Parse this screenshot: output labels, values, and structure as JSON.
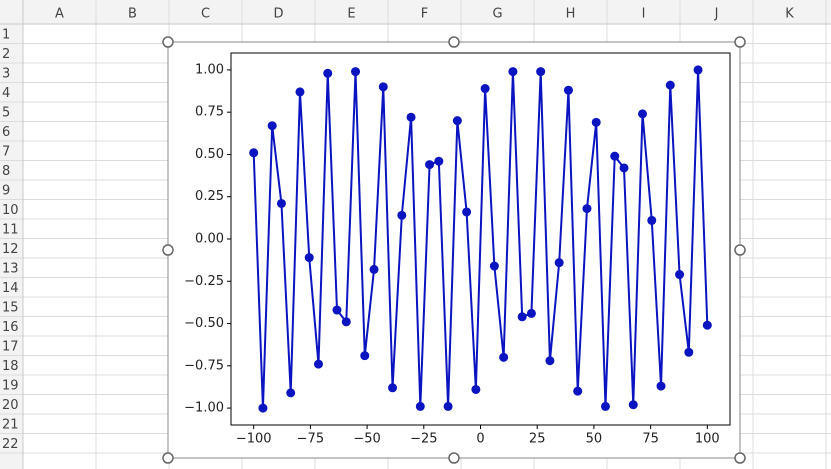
{
  "sheet": {
    "columns": [
      "A",
      "B",
      "C",
      "D",
      "E",
      "F",
      "G",
      "H",
      "I",
      "J",
      "K"
    ],
    "rows": [
      "1",
      "2",
      "3",
      "4",
      "5",
      "6",
      "7",
      "8",
      "9",
      "10",
      "11",
      "12",
      "13",
      "14",
      "15",
      "16",
      "17",
      "18",
      "19",
      "20",
      "21",
      "22"
    ]
  },
  "chart_data": {
    "type": "line",
    "color": "#0a14c0",
    "markers": true,
    "x": [
      -100,
      -95.92,
      -91.84,
      -87.76,
      -83.67,
      -79.59,
      -75.51,
      -71.43,
      -67.35,
      -63.27,
      -59.18,
      -55.1,
      -51.02,
      -46.94,
      -42.86,
      -38.78,
      -34.69,
      -30.61,
      -26.53,
      -22.45,
      -18.37,
      -14.29,
      -10.2,
      -6.12,
      -2.04,
      2.04,
      6.12,
      10.2,
      14.29,
      18.37,
      22.45,
      26.53,
      30.61,
      34.69,
      38.78,
      42.86,
      46.94,
      51.02,
      55.1,
      59.18,
      63.27,
      67.35,
      71.43,
      75.51,
      79.59,
      83.67,
      87.76,
      91.84,
      95.92,
      100
    ],
    "values": [
      0.51,
      -1.0,
      0.67,
      0.21,
      -0.91,
      0.87,
      -0.11,
      -0.74,
      0.98,
      -0.42,
      -0.49,
      0.99,
      -0.69,
      -0.18,
      0.9,
      -0.88,
      0.14,
      0.72,
      -0.99,
      0.44,
      0.46,
      -0.99,
      0.7,
      0.16,
      -0.89,
      0.89,
      -0.16,
      -0.7,
      0.99,
      -0.46,
      -0.44,
      0.99,
      -0.72,
      -0.14,
      0.88,
      -0.9,
      0.18,
      0.69,
      -0.99,
      0.49,
      0.42,
      -0.98,
      0.74,
      0.11,
      -0.87,
      0.91,
      -0.21,
      -0.67,
      1.0,
      -0.51
    ],
    "xlim": [
      -110,
      110
    ],
    "ylim": [
      -1.1,
      1.1
    ],
    "xticks": [
      {
        "value": -100,
        "label": "−100"
      },
      {
        "value": -75,
        "label": "−75"
      },
      {
        "value": -50,
        "label": "−50"
      },
      {
        "value": -25,
        "label": "−25"
      },
      0,
      25,
      50,
      75,
      100
    ],
    "yticks": [
      {
        "value": -1,
        "label": "−1.00"
      },
      {
        "value": -0.75,
        "label": "−0.75"
      },
      {
        "value": -0.5,
        "label": "−0.50"
      },
      {
        "value": -0.25,
        "label": "−0.25"
      },
      {
        "value": 0,
        "label": "0.00"
      },
      {
        "value": 0.25,
        "label": "0.25"
      },
      {
        "value": 0.5,
        "label": "0.50"
      },
      {
        "value": 0.75,
        "label": "0.75"
      },
      {
        "value": 1,
        "label": "1.00"
      }
    ]
  }
}
